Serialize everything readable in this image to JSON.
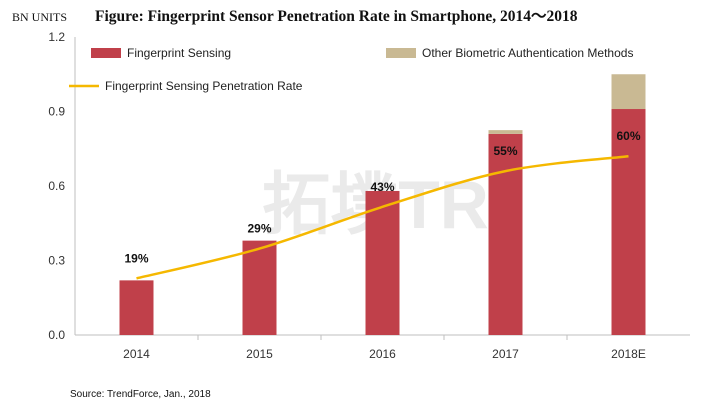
{
  "chart_data": {
    "type": "bar",
    "title": "Figure:  Fingerprint Sensor Penetration Rate in Smartphone, 2014～2018",
    "ylabel": "BN UNITS",
    "categories": [
      "2014",
      "2015",
      "2016",
      "2017",
      "2018E"
    ],
    "ylim": [
      0,
      1.2
    ],
    "yticks": [
      "0.0",
      "0.3",
      "0.6",
      "0.9",
      "1.2"
    ],
    "stacked": true,
    "series": [
      {
        "name": "Fingerprint Sensing",
        "type": "bar",
        "color": "#c0404a",
        "values": [
          0.22,
          0.38,
          0.58,
          0.81,
          0.91
        ]
      },
      {
        "name": "Other Biometric Authentication Methods",
        "type": "bar",
        "color": "#c9b993",
        "values": [
          0,
          0,
          0,
          0.015,
          0.14
        ]
      },
      {
        "name": "Fingerprint Sensing Penetration Rate",
        "type": "line",
        "color": "#f5b800",
        "values": [
          19,
          29,
          43,
          55,
          60
        ],
        "labels": [
          "19%",
          "29%",
          "43%",
          "55%",
          "60%"
        ]
      }
    ],
    "line_scale": {
      "min": 0,
      "max": 100
    },
    "legend_position": "top",
    "grid": false,
    "source": "Source: TrendForce, Jan., 2018",
    "watermark": "拓墣TRI"
  }
}
